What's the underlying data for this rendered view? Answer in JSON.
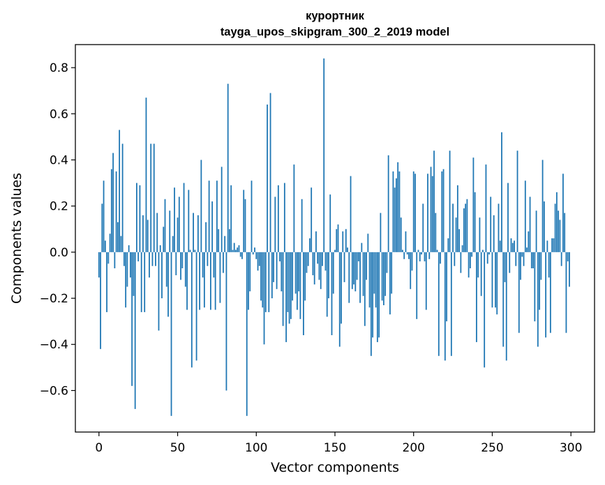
{
  "chart_data": {
    "type": "bar",
    "title": "курортник",
    "subtitle": "tayga_upos_skipgram_300_2_2019 model",
    "xlabel": "Vector components",
    "ylabel": "Components values",
    "xlim": [
      -15,
      315
    ],
    "ylim": [
      -0.78,
      0.9
    ],
    "xticks": [
      0,
      50,
      100,
      150,
      200,
      250,
      300
    ],
    "yticks": [
      -0.6,
      -0.4,
      -0.2,
      0.0,
      0.2,
      0.4,
      0.6,
      0.8
    ],
    "ytick_labels": [
      "−0.6",
      "−0.4",
      "−0.2",
      "0.0",
      "0.2",
      "0.4",
      "0.6",
      "0.8"
    ],
    "bar_color": "#1f77b4",
    "values": [
      -0.11,
      -0.42,
      0.21,
      0.31,
      0.05,
      -0.26,
      -0.05,
      0.08,
      0.36,
      0.43,
      -0.07,
      0.35,
      0.13,
      0.53,
      0.07,
      0.47,
      -0.06,
      -0.24,
      -0.15,
      0.03,
      -0.11,
      -0.58,
      -0.19,
      -0.68,
      0.3,
      -0.04,
      0.29,
      -0.26,
      0.16,
      -0.26,
      0.67,
      0.14,
      -0.11,
      0.47,
      -0.06,
      0.47,
      -0.06,
      0.17,
      -0.34,
      0.03,
      -0.2,
      0.11,
      0.23,
      -0.15,
      -0.28,
      0.18,
      -0.71,
      0.07,
      0.28,
      -0.1,
      0.15,
      0.24,
      -0.12,
      -0.07,
      0.3,
      -0.15,
      -0.25,
      0.27,
      0.01,
      -0.5,
      0.17,
      0.01,
      -0.47,
      0.16,
      -0.25,
      0.4,
      -0.11,
      -0.24,
      0.13,
      -0.06,
      0.31,
      -0.25,
      0.22,
      -0.11,
      -0.25,
      0.31,
      0.1,
      -0.22,
      0.37,
      -0.09,
      0.07,
      -0.6,
      0.73,
      0.1,
      0.29,
      0.01,
      0.04,
      0.01,
      0.02,
      0.03,
      -0.02,
      -0.03,
      0.27,
      0.23,
      -0.71,
      -0.25,
      -0.17,
      0.31,
      -0.01,
      0.02,
      -0.03,
      -0.08,
      -0.06,
      -0.21,
      -0.24,
      -0.4,
      -0.26,
      0.64,
      -0.26,
      0.69,
      -0.2,
      -0.13,
      0.24,
      -0.16,
      0.29,
      -0.04,
      -0.17,
      -0.32,
      0.3,
      -0.39,
      -0.26,
      -0.31,
      -0.29,
      -0.21,
      0.38,
      -0.18,
      -0.25,
      -0.17,
      -0.29,
      0.23,
      -0.36,
      -0.21,
      -0.09,
      -0.06,
      0.06,
      0.28,
      -0.1,
      -0.14,
      0.09,
      -0.05,
      -0.12,
      -0.16,
      -0.06,
      0.84,
      -0.08,
      -0.28,
      -0.2,
      0.25,
      -0.36,
      -0.18,
      0.01,
      0.1,
      0.12,
      -0.41,
      -0.31,
      0.09,
      -0.13,
      0.1,
      0.02,
      -0.22,
      0.33,
      -0.16,
      -0.14,
      -0.17,
      -0.12,
      -0.04,
      -0.22,
      0.04,
      -0.19,
      -0.32,
      -0.12,
      0.08,
      -0.24,
      -0.45,
      -0.37,
      -0.18,
      -0.24,
      -0.39,
      -0.37,
      0.17,
      -0.21,
      -0.23,
      -0.19,
      -0.09,
      0.42,
      -0.27,
      -0.18,
      0.35,
      0.28,
      0.32,
      0.39,
      0.35,
      0.15,
      0.01,
      -0.03,
      0.09,
      -0.01,
      -0.03,
      -0.16,
      -0.08,
      0.35,
      0.34,
      -0.29,
      0.01,
      -0.04,
      -0.01,
      0.21,
      -0.04,
      -0.25,
      0.34,
      -0.03,
      0.37,
      0.33,
      0.44,
      0.17,
      0.01,
      -0.45,
      -0.05,
      0.35,
      0.36,
      -0.47,
      -0.3,
      0.06,
      0.44,
      -0.45,
      0.21,
      -0.06,
      0.15,
      0.29,
      0.1,
      -0.09,
      0.03,
      0.19,
      0.21,
      0.23,
      -0.11,
      -0.07,
      -0.02,
      0.41,
      0.26,
      -0.39,
      -0.11,
      0.15,
      -0.19,
      0.01,
      -0.5,
      0.38,
      -0.05,
      -0.01,
      0.24,
      -0.24,
      0.16,
      -0.24,
      -0.27,
      0.21,
      0.05,
      0.52,
      -0.41,
      -0.13,
      -0.47,
      0.3,
      -0.09,
      0.06,
      0.04,
      0.05,
      -0.06,
      0.44,
      -0.35,
      -0.12,
      -0.02,
      -0.06,
      0.31,
      0.02,
      0.09,
      0.24,
      -0.07,
      -0.07,
      -0.3,
      0.18,
      -0.41,
      -0.25,
      -0.12,
      0.4,
      0.22,
      -0.37,
      0.05,
      -0.11,
      -0.35,
      0.06,
      0.06,
      0.21,
      0.26,
      0.18,
      0.14,
      -0.06,
      0.34,
      0.17,
      -0.35,
      -0.04,
      -0.15
    ]
  }
}
